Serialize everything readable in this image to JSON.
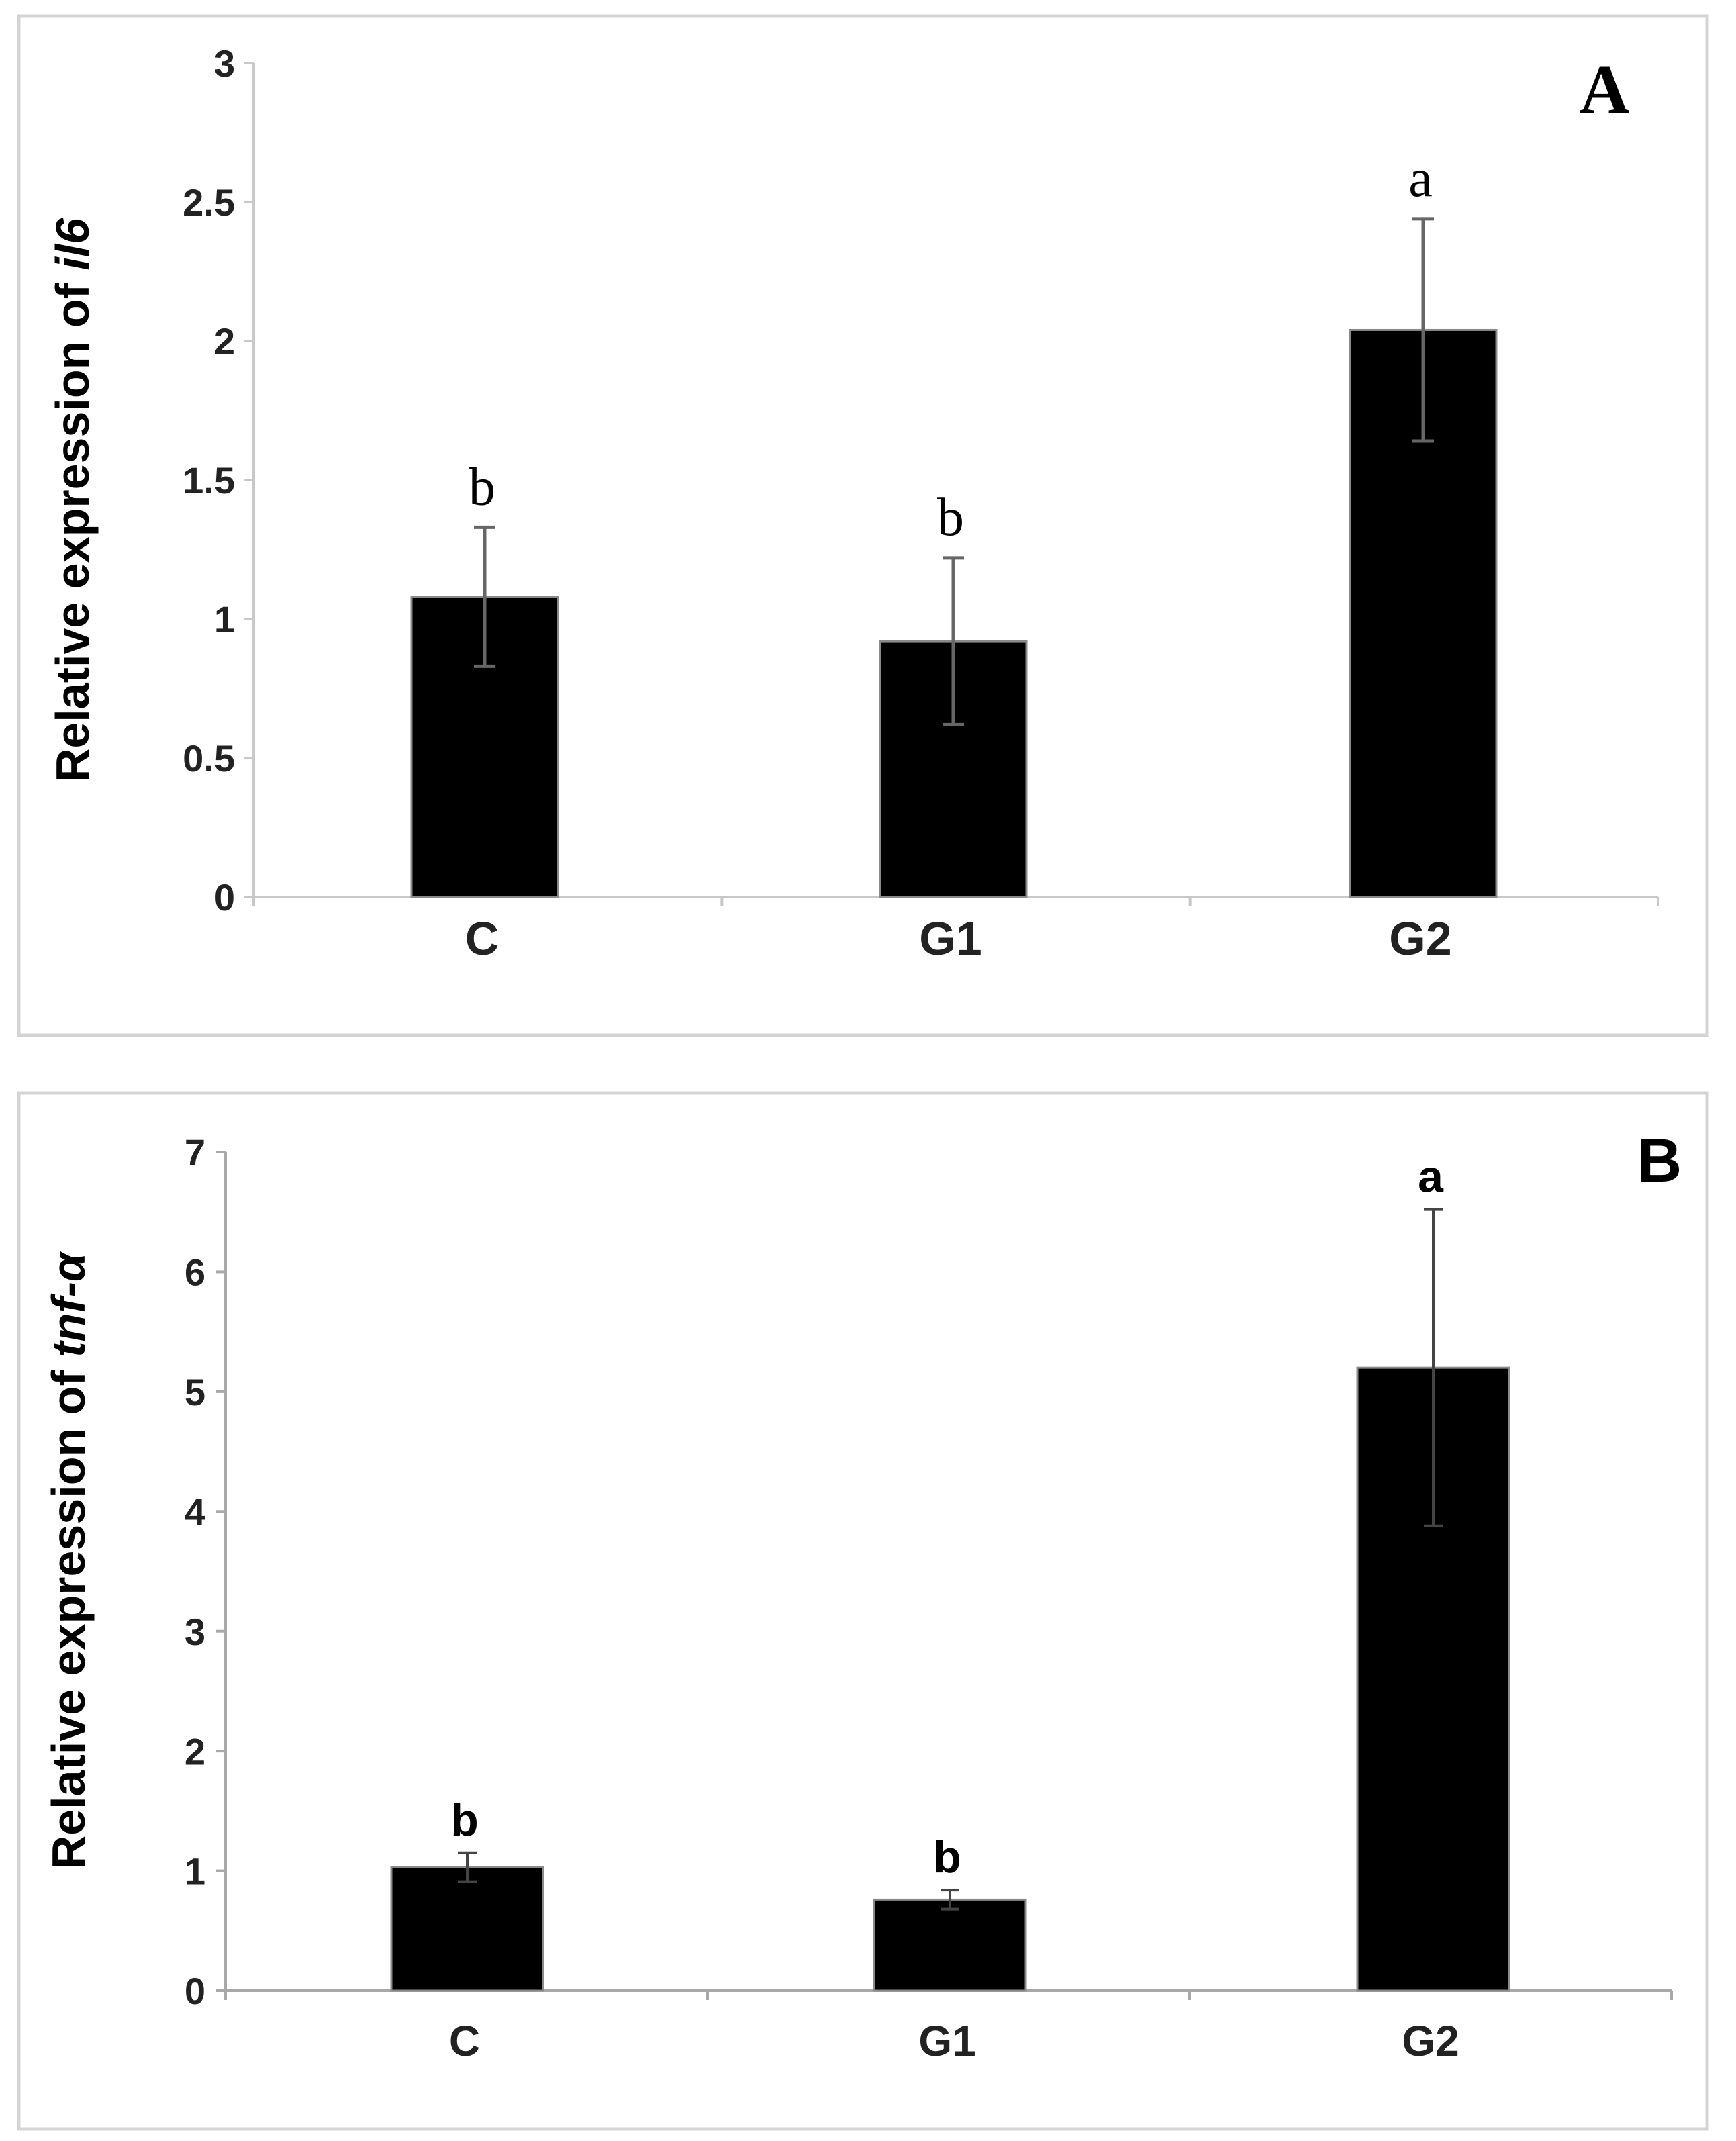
{
  "chart_data": [
    {
      "type": "bar",
      "panel_label": "A",
      "ylabel_prefix": "Relative expression of ",
      "ylabel_gene": "il6",
      "xlabel": "",
      "categories": [
        "C",
        "G1",
        "G2"
      ],
      "values": [
        1.08,
        0.92,
        2.04
      ],
      "errors": [
        0.25,
        0.3,
        0.4
      ],
      "significance": [
        "b",
        "b",
        "a"
      ],
      "ylim": [
        0,
        3
      ],
      "yticks": [
        "0",
        "0.5",
        "1",
        "1.5",
        "2",
        "2.5",
        "3"
      ],
      "grid": false,
      "bar_color": "#000000",
      "error_color": "#666666"
    },
    {
      "type": "bar",
      "panel_label": "B",
      "ylabel_prefix": "Relative expression of ",
      "ylabel_gene": "tnf-α",
      "xlabel": "",
      "categories": [
        "C",
        "G1",
        "G2"
      ],
      "values": [
        1.03,
        0.76,
        5.2
      ],
      "errors": [
        0.12,
        0.08,
        1.32
      ],
      "significance": [
        "b",
        "b",
        "a"
      ],
      "ylim": [
        0,
        7
      ],
      "yticks": [
        "0",
        "1",
        "2",
        "3",
        "4",
        "5",
        "6",
        "7"
      ],
      "grid": false,
      "bar_color": "#000000",
      "error_color": "#444444"
    }
  ]
}
